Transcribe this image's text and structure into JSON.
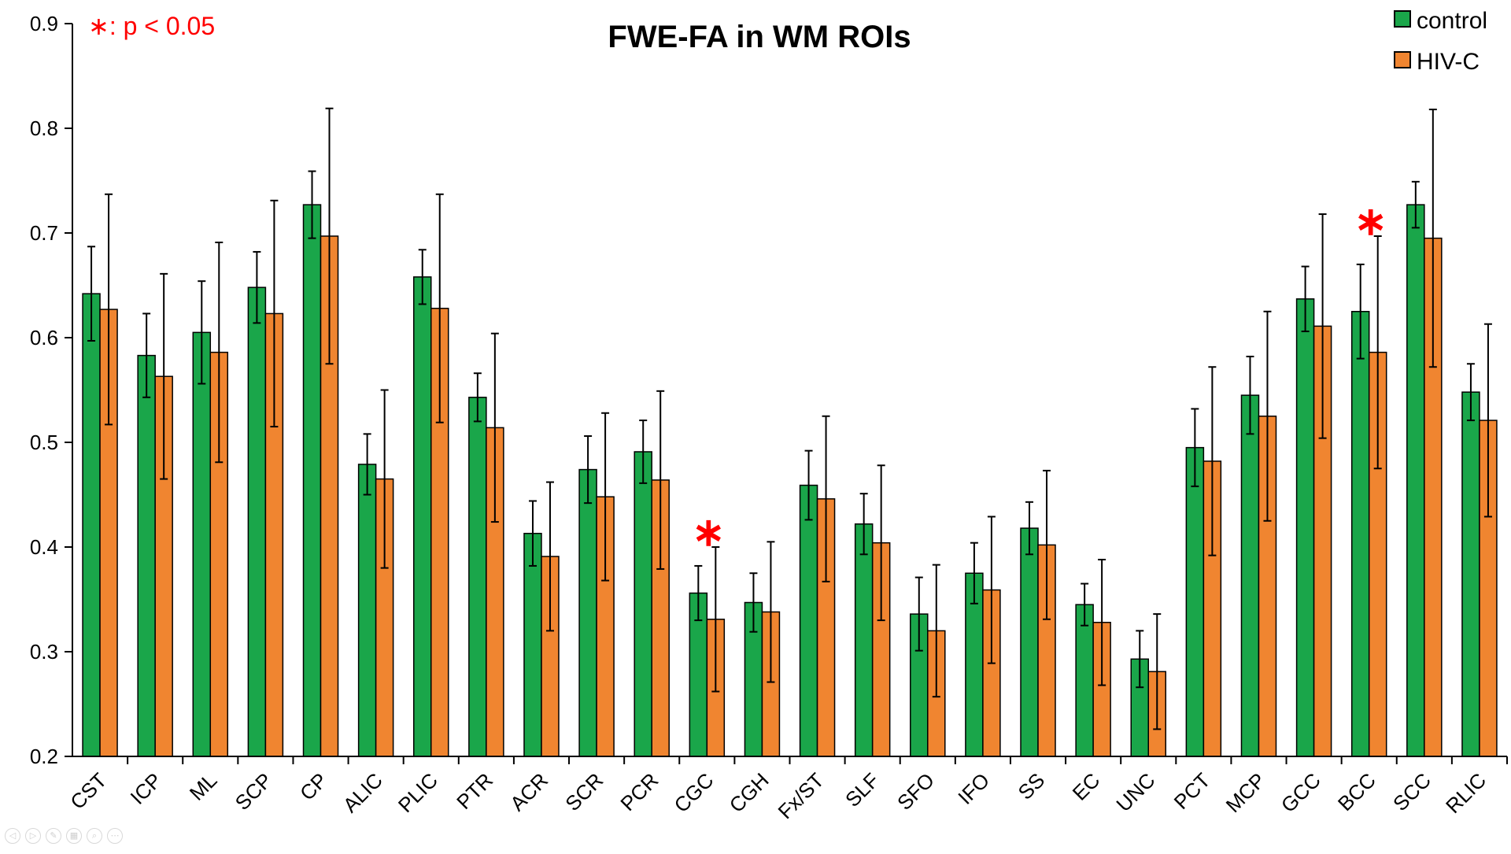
{
  "chart_data": {
    "type": "bar",
    "title": "FWE-FA in WM ROIs",
    "significance_note": "∗: p < 0.05",
    "significance_symbol": "∗",
    "ylim": [
      0.2,
      0.9
    ],
    "yticks": [
      "0.2",
      "0.3",
      "0.4",
      "0.5",
      "0.6",
      "0.7",
      "0.8",
      "0.9"
    ],
    "legend_position": "top-right",
    "categories": [
      "CST",
      "ICP",
      "ML",
      "SCP",
      "CP",
      "ALIC",
      "PLIC",
      "PTR",
      "ACR",
      "SCR",
      "PCR",
      "CGC",
      "CGH",
      "Fx/ST",
      "SLF",
      "SFO",
      "IFO",
      "SS",
      "EC",
      "UNC",
      "PCT",
      "MCP",
      "GCC",
      "BCC",
      "SCC",
      "RLIC"
    ],
    "series": [
      {
        "name": "control",
        "color": "#1aa64a",
        "values": [
          0.642,
          0.583,
          0.605,
          0.648,
          0.727,
          0.479,
          0.658,
          0.543,
          0.413,
          0.474,
          0.491,
          0.356,
          0.347,
          0.459,
          0.422,
          0.336,
          0.375,
          0.418,
          0.345,
          0.293,
          0.495,
          0.545,
          0.637,
          0.625,
          0.727,
          0.548
        ],
        "errors": [
          0.045,
          0.04,
          0.049,
          0.034,
          0.032,
          0.029,
          0.026,
          0.023,
          0.031,
          0.032,
          0.03,
          0.026,
          0.028,
          0.033,
          0.029,
          0.035,
          0.029,
          0.025,
          0.02,
          0.027,
          0.037,
          0.037,
          0.031,
          0.045,
          0.022,
          0.027
        ]
      },
      {
        "name": "HIV-C",
        "color": "#f08530",
        "values": [
          0.627,
          0.563,
          0.586,
          0.623,
          0.697,
          0.465,
          0.628,
          0.514,
          0.391,
          0.448,
          0.464,
          0.331,
          0.338,
          0.446,
          0.404,
          0.32,
          0.359,
          0.402,
          0.328,
          0.281,
          0.482,
          0.525,
          0.611,
          0.586,
          0.695,
          0.521
        ],
        "errors": [
          0.11,
          0.098,
          0.105,
          0.108,
          0.122,
          0.085,
          0.109,
          0.09,
          0.071,
          0.08,
          0.085,
          0.069,
          0.067,
          0.079,
          0.074,
          0.063,
          0.07,
          0.071,
          0.06,
          0.055,
          0.09,
          0.1,
          0.107,
          0.111,
          0.123,
          0.092
        ]
      }
    ],
    "significant_categories": [
      "CGC",
      "BCC"
    ]
  }
}
